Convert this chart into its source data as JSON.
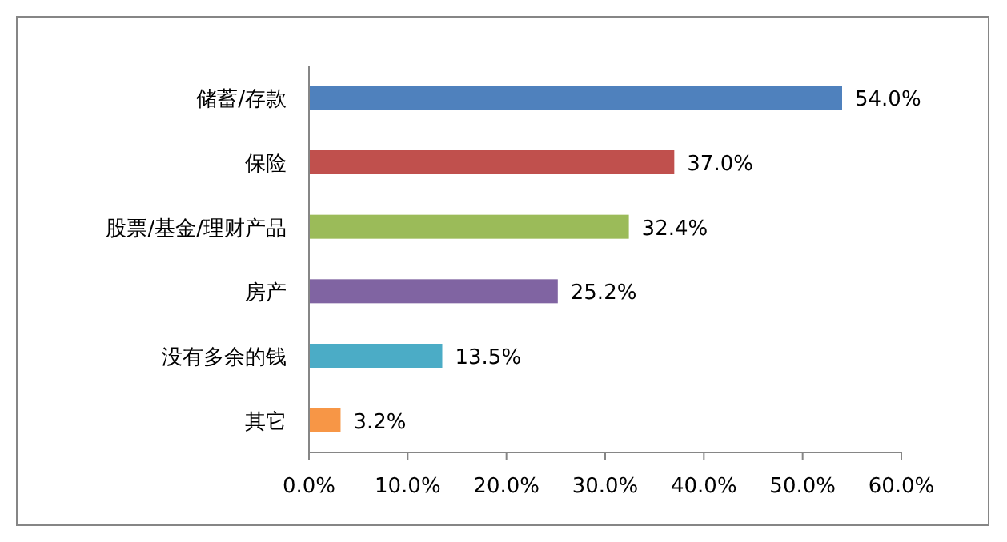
{
  "chart_data": {
    "type": "bar",
    "orientation": "horizontal",
    "categories": [
      "储蓄/存款",
      "保险",
      "股票/基金/理财产品",
      "房产",
      "没有多余的钱",
      "其它"
    ],
    "values": [
      54.0,
      37.0,
      32.4,
      25.2,
      13.5,
      3.2
    ],
    "colors": [
      "#4f81bd",
      "#c0504d",
      "#9bbb59",
      "#8064a2",
      "#4bacc6",
      "#f79646"
    ],
    "value_labels": [
      "54.0%",
      "37.0%",
      "32.4%",
      "25.2%",
      "13.5%",
      "3.2%"
    ],
    "xlim": [
      0,
      60
    ],
    "xticks": [
      {
        "value": 0,
        "label": "0.0%"
      },
      {
        "value": 10,
        "label": "10.0%"
      },
      {
        "value": 20,
        "label": "20.0%"
      },
      {
        "value": 30,
        "label": "30.0%"
      },
      {
        "value": 40,
        "label": "40.0%"
      },
      {
        "value": 50,
        "label": "50.0%"
      },
      {
        "value": 60,
        "label": "60.0%"
      }
    ],
    "grid": false
  }
}
